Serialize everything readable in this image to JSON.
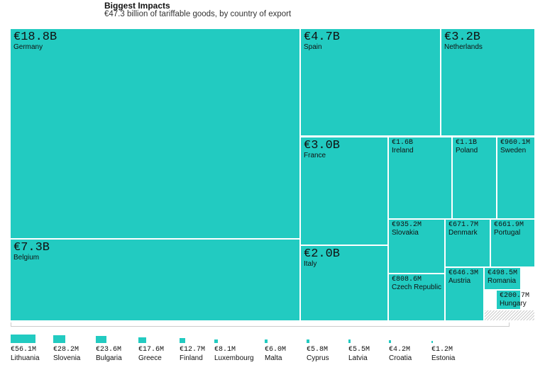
{
  "chart_data": {
    "type": "treemap",
    "title": "Biggest Impacts",
    "subtitle": "€47.3 billion of tariffable goods, by country of export",
    "color": "#22cbc1",
    "categories": [
      "Germany",
      "Belgium",
      "Spain",
      "Netherlands",
      "France",
      "Italy",
      "Ireland",
      "Poland",
      "Sweden",
      "Slovakia",
      "Denmark",
      "Portugal",
      "Czech Republic",
      "Austria",
      "Romania",
      "Hungary",
      "Lithuania",
      "Slovenia",
      "Bulgaria",
      "Greece",
      "Finland",
      "Luxembourg",
      "Malta",
      "Cyprus",
      "Latvia",
      "Croatia",
      "Estonia"
    ],
    "values": [
      18800,
      7300,
      4700,
      3200,
      3000,
      2000,
      1600,
      1100,
      960.1,
      935.2,
      671.7,
      661.9,
      808.6,
      646.3,
      498.5,
      200.7,
      56.1,
      28.2,
      23.6,
      17.6,
      12.7,
      8.1,
      6.0,
      5.8,
      5.5,
      4.2,
      1.2
    ],
    "value_labels": [
      "€18.8B",
      "€7.3B",
      "€4.7B",
      "€3.2B",
      "€3.0B",
      "€2.0B",
      "€1.6B",
      "€1.1B",
      "€960.1M",
      "€935.2M",
      "€671.7M",
      "€661.9M",
      "€808.6M",
      "€646.3M",
      "€498.5M",
      "€200.7M",
      "€56.1M",
      "€28.2M",
      "€23.6M",
      "€17.6M",
      "€12.7M",
      "€8.1M",
      "€6.0M",
      "€5.8M",
      "€5.5M",
      "€4.2M",
      "€1.2M"
    ]
  }
}
